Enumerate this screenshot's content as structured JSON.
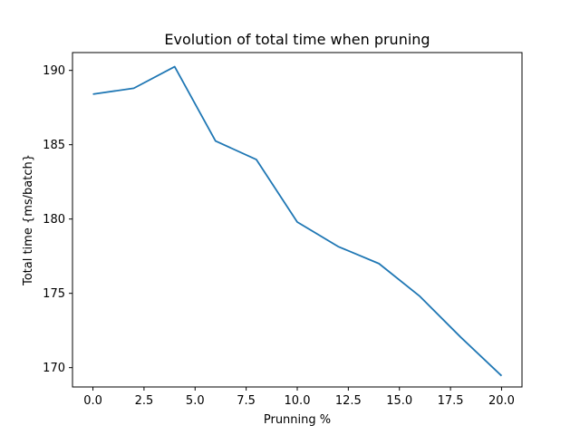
{
  "chart_data": {
    "type": "line",
    "title": "Evolution of total time when pruning",
    "xlabel": "Prunning %",
    "ylabel": "Total time {ms/batch}",
    "xlim": [
      -1.0,
      21.0
    ],
    "ylim": [
      168.7,
      191.2
    ],
    "xticks": [
      0.0,
      2.5,
      5.0,
      7.5,
      10.0,
      12.5,
      15.0,
      17.5,
      20.0
    ],
    "xtick_labels": [
      "0.0",
      "2.5",
      "5.0",
      "7.5",
      "10.0",
      "12.5",
      "15.0",
      "17.5",
      "20.0"
    ],
    "yticks": [
      170,
      175,
      180,
      185,
      190
    ],
    "ytick_labels": [
      "170",
      "175",
      "180",
      "185",
      "190"
    ],
    "grid": false,
    "series": [
      {
        "color": "#1f77b4",
        "x": [
          0,
          2,
          4,
          6,
          8,
          10,
          12,
          14,
          16,
          18,
          20
        ],
        "y": [
          188.4,
          188.8,
          190.25,
          185.25,
          184.0,
          179.8,
          178.15,
          177.0,
          174.8,
          172.05,
          169.45
        ]
      }
    ]
  }
}
